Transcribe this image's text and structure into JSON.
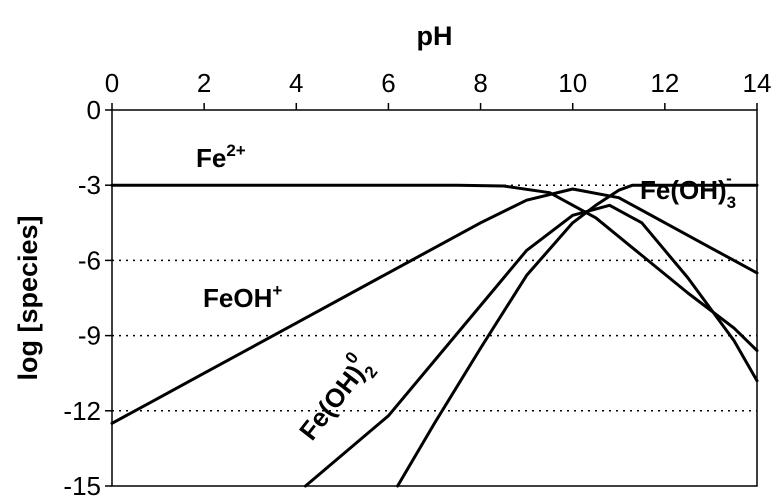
{
  "chart_data": {
    "type": "line",
    "xlabel": "pH",
    "ylabel": "log [species]",
    "xlim": [
      0,
      14
    ],
    "ylim": [
      -15,
      0
    ],
    "x_ticks": [
      "0",
      "2",
      "4",
      "6",
      "8",
      "10",
      "12",
      "14"
    ],
    "y_ticks": [
      "0",
      "-3",
      "-6",
      "-9",
      "-12",
      "-15"
    ],
    "gridlines_y": [
      -3,
      -6,
      -9,
      -12
    ],
    "grid": "horizontal dotted",
    "legend": "none",
    "line_color": "#000000",
    "series": [
      {
        "label_base": "Fe",
        "label_sup": "2+",
        "label_sub": "",
        "points": [
          [
            0,
            -3.0
          ],
          [
            7.5,
            -3.0
          ],
          [
            8.5,
            -3.03
          ],
          [
            9.5,
            -3.3
          ],
          [
            10.5,
            -4.3
          ],
          [
            11.5,
            -5.8
          ],
          [
            12.5,
            -7.3
          ],
          [
            13.5,
            -8.7
          ],
          [
            14,
            -9.6
          ]
        ]
      },
      {
        "label_base": "FeOH",
        "label_sup": "+",
        "label_sub": "",
        "points": [
          [
            0,
            -12.5
          ],
          [
            1,
            -11.5
          ],
          [
            2,
            -10.5
          ],
          [
            4,
            -8.5
          ],
          [
            6,
            -6.5
          ],
          [
            8,
            -4.5
          ],
          [
            9,
            -3.6
          ],
          [
            10,
            -3.15
          ],
          [
            11,
            -3.5
          ],
          [
            12,
            -4.5
          ],
          [
            13,
            -5.5
          ],
          [
            14,
            -6.5
          ]
        ]
      },
      {
        "label_base": "Fe(OH)",
        "label_sup": "0",
        "label_sub": "2",
        "points": [
          [
            4.2,
            -15.0
          ],
          [
            6,
            -12.2
          ],
          [
            8,
            -7.8
          ],
          [
            9,
            -5.6
          ],
          [
            10,
            -4.2
          ],
          [
            10.8,
            -3.8
          ],
          [
            11.5,
            -4.5
          ],
          [
            12.5,
            -6.7
          ],
          [
            13.5,
            -9.2
          ],
          [
            14,
            -10.8
          ]
        ]
      },
      {
        "label_base": "Fe(OH)",
        "label_sup": "-",
        "label_sub": "3",
        "points": [
          [
            6.2,
            -15.0
          ],
          [
            7,
            -12.5
          ],
          [
            8,
            -9.5
          ],
          [
            9,
            -6.6
          ],
          [
            10,
            -4.5
          ],
          [
            10.5,
            -3.8
          ],
          [
            11,
            -3.2
          ],
          [
            11.3,
            -3.0
          ],
          [
            14,
            -3.0
          ]
        ]
      }
    ]
  }
}
